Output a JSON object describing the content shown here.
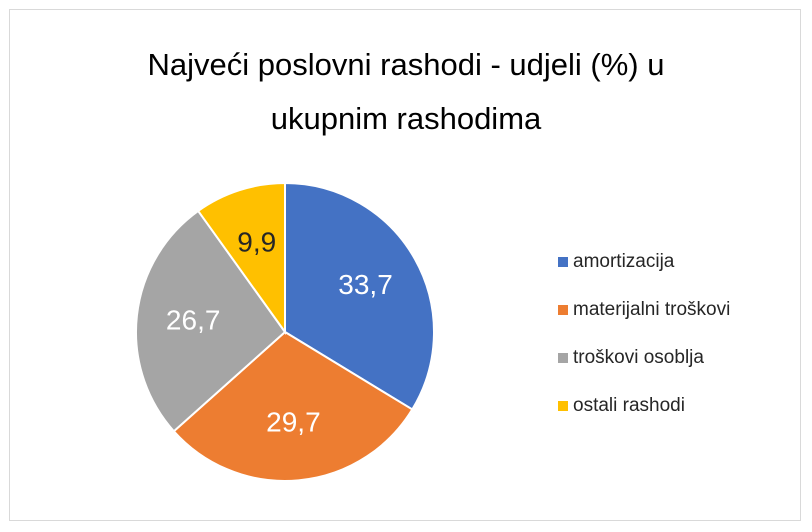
{
  "chart_data": {
    "type": "pie",
    "title": "Najveći poslovni rashodi - udjeli (%) u ukupnim rashodima",
    "categories": [
      "amortizacija",
      "materijalni troškovi",
      "troškovi osoblja",
      "ostali rashodi"
    ],
    "values": [
      33.7,
      29.7,
      26.7,
      9.9
    ],
    "value_labels": [
      "33,7",
      "29,7",
      "26,7",
      "9,9"
    ],
    "colors": [
      "#4472c4",
      "#ed7d31",
      "#a5a5a5",
      "#ffc000"
    ],
    "legend": "right"
  }
}
